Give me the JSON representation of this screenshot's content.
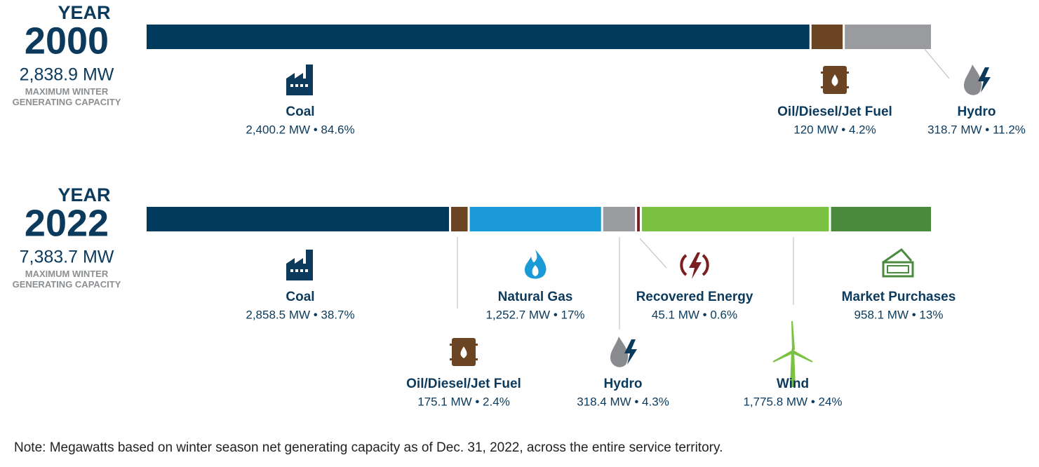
{
  "chart_data": [
    {
      "type": "bar",
      "title": "YEAR",
      "subtitle": "2000",
      "total": 2838.9,
      "total_label": "2,838.9 MW",
      "caption": "MAXIMUM WINTER GENERATING CAPACITY",
      "series": [
        {
          "name": "Coal",
          "color": "#003a5c",
          "values": [
            2400.2
          ],
          "value_labels": [
            "2,400.2 MW • 84.6%"
          ]
        },
        {
          "name": "Oil/Diesel/Jet Fuel",
          "color": "#6b4423",
          "values": [
            120
          ],
          "value_labels": [
            "120 MW • 4.2%"
          ]
        },
        {
          "name": "Hydro",
          "color": "#9a9b9e",
          "values": [
            318.7
          ],
          "value_labels": [
            "318.7 MW • 11.2%"
          ]
        }
      ]
    },
    {
      "type": "bar",
      "title": "YEAR",
      "subtitle": "2022",
      "total": 7383.7,
      "total_label": "7,383.7 MW",
      "caption": "MAXIMUM WINTER GENERATING CAPACITY",
      "series": [
        {
          "name": "Coal",
          "color": "#003a5c",
          "values": [
            2858.5
          ],
          "value_labels": [
            "2,858.5 MW • 38.7%"
          ]
        },
        {
          "name": "Oil/Diesel/Jet Fuel",
          "color": "#6b4423",
          "values": [
            175.1
          ],
          "value_labels": [
            "175.1 MW • 2.4%"
          ]
        },
        {
          "name": "Natural Gas",
          "color": "#1a9ad6",
          "values": [
            1252.7
          ],
          "value_labels": [
            "1,252.7 MW • 17%"
          ]
        },
        {
          "name": "Hydro",
          "color": "#9a9b9e",
          "values": [
            318.4
          ],
          "value_labels": [
            "318.4 MW • 4.3%"
          ]
        },
        {
          "name": "Recovered Energy",
          "color": "#7a1f1f",
          "values": [
            45.1
          ],
          "value_labels": [
            "45.1 MW • 0.6%"
          ]
        },
        {
          "name": "Wind",
          "color": "#7cc242",
          "values": [
            1775.8
          ],
          "value_labels": [
            "1,775.8 MW • 24%"
          ]
        },
        {
          "name": "Market Purchases",
          "color": "#4a8a3c",
          "values": [
            958.1
          ],
          "value_labels": [
            "958.1 MW • 13%"
          ]
        }
      ]
    }
  ],
  "note": "Note: Megawatts based on winter season net generating capacity as of Dec. 31, 2022, across the entire service territory."
}
